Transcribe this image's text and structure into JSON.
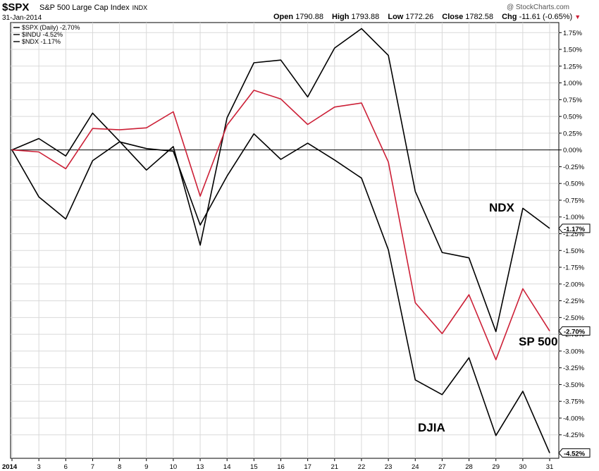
{
  "header": {
    "symbol": "$SPX",
    "name": "S&P 500 Large Cap Index",
    "exchange": "INDX",
    "date": "31-Jan-2014",
    "credit": "@ StockCharts.com",
    "open_label": "Open",
    "open": "1790.88",
    "high_label": "High",
    "high": "1793.88",
    "low_label": "Low",
    "low": "1772.26",
    "close_label": "Close",
    "close": "1782.58",
    "chg_label": "Chg",
    "chg": "-11.61 (-0.65%)",
    "chg_arrow": "▼"
  },
  "colors": {
    "spx": "#cc1f36",
    "indu": "#000000",
    "ndx": "#000000",
    "zero_line": "#000000",
    "grid": "#d9d9d9"
  },
  "chart_data": {
    "type": "line",
    "x": [
      "2014",
      "3",
      "6",
      "7",
      "8",
      "9",
      "10",
      "13",
      "14",
      "15",
      "16",
      "17",
      "21",
      "22",
      "23",
      "24",
      "27",
      "28",
      "29",
      "30",
      "31"
    ],
    "x_tick_labels": [
      "2014",
      "3",
      "6",
      "7",
      "8",
      "9",
      "10",
      "13",
      "14",
      "15",
      "16",
      "17",
      "21",
      "22",
      "23",
      "24",
      "27",
      "28",
      "29",
      "30",
      "31"
    ],
    "ylim": [
      -4.6,
      1.9
    ],
    "y_ticks": [
      1.75,
      1.5,
      1.25,
      1.0,
      0.75,
      0.5,
      0.25,
      0.0,
      -0.25,
      -0.5,
      -0.75,
      -1.0,
      -1.25,
      -1.5,
      -1.75,
      -2.0,
      -2.25,
      -2.5,
      -2.75,
      -3.0,
      -3.25,
      -3.5,
      -3.75,
      -4.0,
      -4.25
    ],
    "y_tick_labels": [
      "1.75%",
      "1.50%",
      "1.25%",
      "1.00%",
      "0.75%",
      "0.50%",
      "0.25%",
      "0.00%",
      "-0.25%",
      "-0.50%",
      "-0.75%",
      "-1.00%",
      "-1.25%",
      "-1.50%",
      "-1.75%",
      "-2.00%",
      "-2.25%",
      "-2.50%",
      "-2.75%",
      "-3.00%",
      "-3.25%",
      "-3.50%",
      "-3.75%",
      "-4.00%",
      "-4.25%"
    ],
    "legend": [
      "$SPX (Daily) -2.70%",
      "$INDU -4.52%",
      "$NDX -1.17%"
    ],
    "legend_position": "top-left",
    "series": [
      {
        "name": "$SPX",
        "color": "#cc1f36",
        "values": [
          0.0,
          -0.03,
          -0.28,
          0.32,
          0.3,
          0.33,
          0.57,
          -0.69,
          0.37,
          0.89,
          0.76,
          0.38,
          0.64,
          0.7,
          -0.18,
          -2.28,
          -2.74,
          -2.16,
          -3.13,
          -2.07,
          -2.7
        ],
        "end_label": "-2.70%"
      },
      {
        "name": "$INDU",
        "color": "#000000",
        "values": [
          0.0,
          -0.7,
          -1.03,
          -0.16,
          0.12,
          0.02,
          -0.02,
          -1.12,
          -0.39,
          0.24,
          -0.14,
          0.1,
          -0.15,
          -0.42,
          -1.49,
          -3.43,
          -3.65,
          -3.1,
          -4.26,
          -3.6,
          -4.52
        ],
        "end_label": "-4.52%"
      },
      {
        "name": "$NDX",
        "color": "#000000",
        "values": [
          0.0,
          0.17,
          -0.09,
          0.55,
          0.13,
          -0.3,
          0.05,
          -1.42,
          0.48,
          1.3,
          1.34,
          0.79,
          1.52,
          1.81,
          1.41,
          -0.62,
          -1.53,
          -1.61,
          -2.71,
          -0.87,
          -1.17
        ],
        "end_label": "-1.17%"
      }
    ],
    "annotations": [
      "NDX",
      "SP 500",
      "DJIA"
    ],
    "grid": true
  }
}
